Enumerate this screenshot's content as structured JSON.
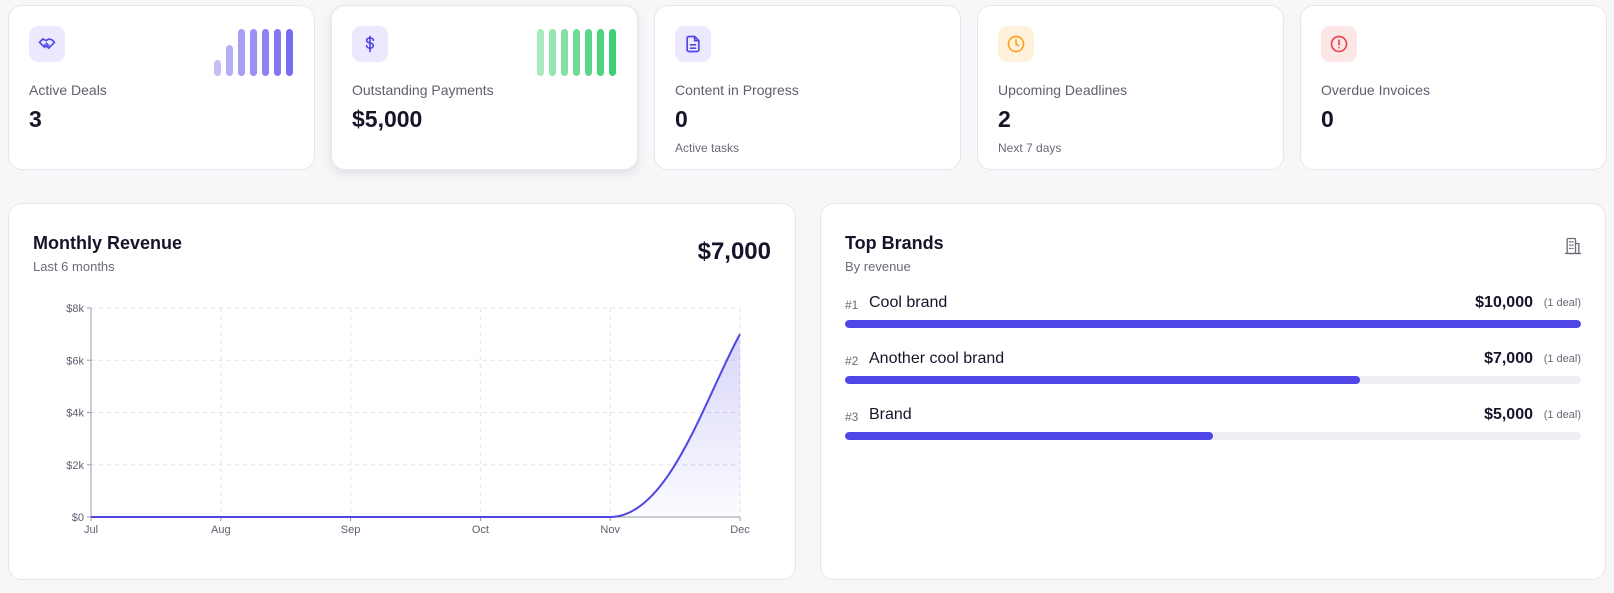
{
  "stats": [
    {
      "label": "Active Deals",
      "value": "3",
      "sub": "",
      "icon": "handshake-icon"
    },
    {
      "label": "Outstanding Payments",
      "value": "$5,000",
      "sub": "",
      "icon": "dollar-icon"
    },
    {
      "label": "Content in Progress",
      "value": "0",
      "sub": "Active tasks",
      "icon": "document-icon"
    },
    {
      "label": "Upcoming Deadlines",
      "value": "2",
      "sub": "Next 7 days",
      "icon": "clock-icon"
    },
    {
      "label": "Overdue Invoices",
      "value": "0",
      "sub": "",
      "icon": "alert-circle-icon"
    }
  ],
  "colors": {
    "accent": "#4f46e5",
    "purple_bar": "#7a6cf0",
    "green_bar": "#3fcf73",
    "orange": "#f5a524",
    "red": "#e5484d"
  },
  "revenue": {
    "title": "Monthly Revenue",
    "subtitle": "Last 6 months",
    "total": "$7,000"
  },
  "chart_data": {
    "type": "area",
    "title": "Monthly Revenue",
    "categories": [
      "Jul",
      "Aug",
      "Sep",
      "Oct",
      "Nov",
      "Dec"
    ],
    "values": [
      0,
      0,
      0,
      0,
      0,
      7000
    ],
    "y_ticks": [
      0,
      2000,
      4000,
      6000,
      8000
    ],
    "y_tick_labels": [
      "$0",
      "$2k",
      "$4k",
      "$6k",
      "$8k"
    ],
    "ylim": [
      0,
      8000
    ],
    "grid": true,
    "xlabel": "",
    "ylabel": ""
  },
  "brands": {
    "title": "Top Brands",
    "subtitle": "By revenue",
    "items": [
      {
        "rank": "#1",
        "name": "Cool brand",
        "amount": "$10,000",
        "deals": "(1 deal)",
        "share": 1.0
      },
      {
        "rank": "#2",
        "name": "Another cool brand",
        "amount": "$7,000",
        "deals": "(1 deal)",
        "share": 0.7
      },
      {
        "rank": "#3",
        "name": "Brand",
        "amount": "$5,000",
        "deals": "(1 deal)",
        "share": 0.5
      }
    ]
  }
}
